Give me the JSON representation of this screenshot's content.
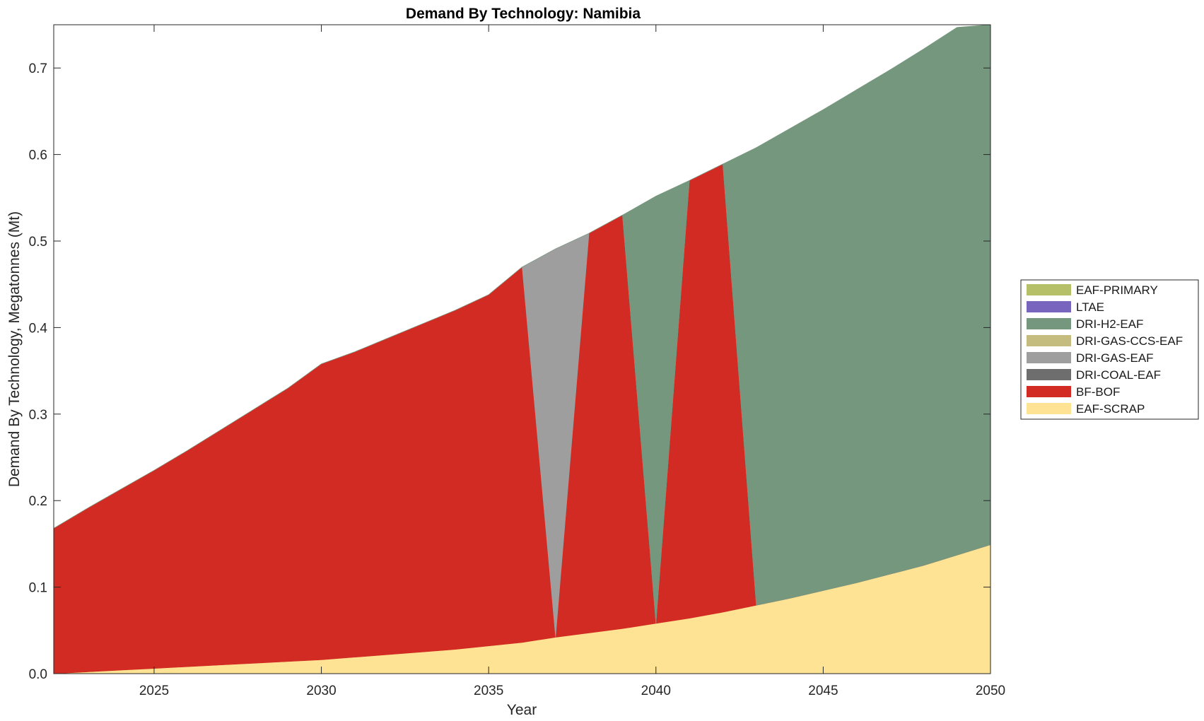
{
  "chart_data": {
    "type": "area",
    "title": "Demand By Technology: Namibia",
    "xlabel": "Year",
    "ylabel": "Demand By Technology, Megatonnes (Mt)",
    "xlim": [
      2022,
      2050
    ],
    "ylim": [
      0,
      0.75
    ],
    "xticks": [
      2025,
      2030,
      2035,
      2040,
      2045,
      2050
    ],
    "yticks": [
      "0.0",
      "0.1",
      "0.2",
      "0.3",
      "0.4",
      "0.5",
      "0.6",
      "0.7"
    ],
    "ytick_values": [
      0,
      0.1,
      0.2,
      0.3,
      0.4,
      0.5,
      0.6,
      0.7
    ],
    "grid": false,
    "legend_position": "right",
    "x": [
      2022,
      2023,
      2024,
      2025,
      2026,
      2027,
      2028,
      2029,
      2030,
      2031,
      2032,
      2033,
      2034,
      2035,
      2036,
      2037,
      2038,
      2039,
      2040,
      2041,
      2042,
      2043,
      2044,
      2045,
      2046,
      2047,
      2048,
      2049,
      2050
    ],
    "series": [
      {
        "name": "EAF-SCRAP",
        "color": "#fde393",
        "values": [
          0.0,
          0.002,
          0.004,
          0.006,
          0.008,
          0.01,
          0.012,
          0.014,
          0.016,
          0.019,
          0.022,
          0.025,
          0.028,
          0.032,
          0.036,
          0.042,
          0.047,
          0.052,
          0.058,
          0.064,
          0.071,
          0.079,
          0.087,
          0.096,
          0.105,
          0.115,
          0.125,
          0.137,
          0.149
        ]
      },
      {
        "name": "BF-BOF",
        "color": "#d22b23",
        "values": [
          0.168,
          0.189,
          0.209,
          0.229,
          0.25,
          0.272,
          0.294,
          0.316,
          0.342,
          0.353,
          0.366,
          0.379,
          0.392,
          0.406,
          0.434,
          0,
          0.462,
          0.478,
          0,
          0.506,
          0.518,
          0,
          0,
          0,
          0,
          0,
          0,
          0,
          0
        ]
      },
      {
        "name": "DRI-COAL-EAF",
        "color": "#6e6e6e",
        "values": [
          0,
          0,
          0,
          0,
          0,
          0,
          0,
          0,
          0,
          0,
          0,
          0,
          0,
          0,
          0,
          0,
          0,
          0,
          0,
          0,
          0,
          0,
          0,
          0,
          0,
          0,
          0,
          0,
          0
        ]
      },
      {
        "name": "DRI-GAS-EAF",
        "color": "#9e9e9e",
        "values": [
          0,
          0,
          0,
          0,
          0,
          0,
          0,
          0,
          0,
          0,
          0,
          0,
          0,
          0,
          0,
          0.449,
          0,
          0,
          0,
          0,
          0,
          0,
          0,
          0,
          0,
          0,
          0,
          0,
          0
        ]
      },
      {
        "name": "DRI-GAS-CCS-EAF",
        "color": "#c4bc7f",
        "values": [
          0,
          0,
          0,
          0,
          0,
          0,
          0,
          0,
          0,
          0,
          0,
          0,
          0,
          0,
          0,
          0,
          0,
          0,
          0,
          0,
          0,
          0,
          0,
          0,
          0,
          0,
          0,
          0,
          0
        ]
      },
      {
        "name": "DRI-H2-EAF",
        "color": "#75977d",
        "values": [
          0,
          0,
          0,
          0,
          0,
          0,
          0,
          0,
          0,
          0,
          0,
          0,
          0,
          0,
          0,
          0,
          0,
          0,
          0.494,
          0,
          0,
          0.529,
          0.543,
          0.556,
          0.57,
          0.583,
          0.597,
          0.61,
          0.601
        ]
      },
      {
        "name": "LTAE",
        "color": "#7765be",
        "values": [
          0,
          0,
          0,
          0,
          0,
          0,
          0,
          0,
          0,
          0,
          0,
          0,
          0,
          0,
          0,
          0,
          0,
          0,
          0,
          0,
          0,
          0,
          0,
          0,
          0,
          0,
          0,
          0,
          0
        ]
      },
      {
        "name": "EAF-PRIMARY",
        "color": "#b5c068",
        "values": [
          0,
          0,
          0,
          0,
          0,
          0,
          0,
          0,
          0,
          0,
          0,
          0,
          0,
          0,
          0,
          0,
          0,
          0,
          0,
          0,
          0,
          0,
          0,
          0,
          0,
          0,
          0,
          0,
          0
        ]
      }
    ],
    "legend_order": [
      "EAF-PRIMARY",
      "LTAE",
      "DRI-H2-EAF",
      "DRI-GAS-CCS-EAF",
      "DRI-GAS-EAF",
      "DRI-COAL-EAF",
      "BF-BOF",
      "EAF-SCRAP"
    ]
  }
}
